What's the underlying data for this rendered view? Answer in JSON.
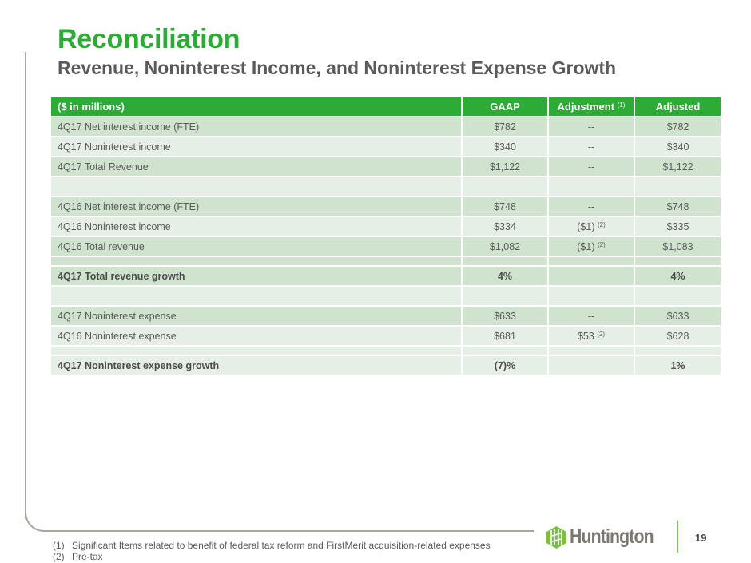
{
  "header": {
    "title": "Reconciliation",
    "subtitle": "Revenue, Noninterest Income, and Noninterest Expense Growth"
  },
  "table": {
    "columns": {
      "label": "($ in millions)",
      "blank": "",
      "gaap": "GAAP",
      "adjustment": "Adjustment",
      "adjustment_note": "(1)",
      "adjusted": "Adjusted"
    },
    "rows": [
      {
        "label": "4Q17 Net interest income (FTE)",
        "gaap": "$782",
        "adjustment": "--",
        "adjustment_note": "",
        "adjusted": "$782"
      },
      {
        "label": "4Q17 Noninterest income",
        "gaap": "$340",
        "adjustment": "--",
        "adjustment_note": "",
        "adjusted": "$340"
      },
      {
        "label": "4Q17 Total Revenue",
        "gaap": "$1,122",
        "adjustment": "--",
        "adjustment_note": "",
        "adjusted": "$1,122"
      },
      {
        "label": "",
        "gaap": "",
        "adjustment": "",
        "adjustment_note": "",
        "adjusted": ""
      },
      {
        "label": "4Q16 Net interest income (FTE)",
        "gaap": "$748",
        "adjustment": "--",
        "adjustment_note": "",
        "adjusted": "$748"
      },
      {
        "label": "4Q16 Noninterest income",
        "gaap": "$334",
        "adjustment": "($1)",
        "adjustment_note": "(2)",
        "adjusted": "$335"
      },
      {
        "label": "4Q16 Total revenue",
        "gaap": "$1,082",
        "adjustment": "($1)",
        "adjustment_note": "(2)",
        "adjusted": "$1,083"
      },
      {
        "label": "",
        "gaap": "",
        "adjustment": "",
        "adjustment_note": "",
        "adjusted": ""
      },
      {
        "label": "4Q17 Total revenue growth",
        "gaap": "4%",
        "adjustment": "",
        "adjustment_note": "",
        "adjusted": "4%"
      },
      {
        "label": "",
        "gaap": "",
        "adjustment": "",
        "adjustment_note": "",
        "adjusted": ""
      },
      {
        "label": "4Q17 Noninterest expense",
        "gaap": "$633",
        "adjustment": "--",
        "adjustment_note": "",
        "adjusted": "$633"
      },
      {
        "label": "4Q16 Noninterest expense",
        "gaap": "$681",
        "adjustment": "$53",
        "adjustment_note": "(2)",
        "adjusted": "$628"
      },
      {
        "label": "",
        "gaap": "",
        "adjustment": "",
        "adjustment_note": "",
        "adjusted": ""
      },
      {
        "label": "4Q17 Noninterest expense growth",
        "gaap": "(7)%",
        "adjustment": "",
        "adjustment_note": "",
        "adjusted": "1%"
      }
    ]
  },
  "footnotes": [
    {
      "num": "(1)",
      "text": "Significant Items related to benefit of federal tax reform and FirstMerit acquisition-related expenses"
    },
    {
      "num": "(2)",
      "text": "Pre-tax"
    }
  ],
  "footer": {
    "logo_text": "Huntington",
    "logo_icon": "huntington-hexagon-logo",
    "page_number": "19"
  },
  "colors": {
    "brand_green": "#2eab36",
    "row_dark": "#cfe3cf",
    "row_light": "#e6efe6",
    "logo_gray": "#7b7770",
    "logo_green": "#7bc043"
  }
}
